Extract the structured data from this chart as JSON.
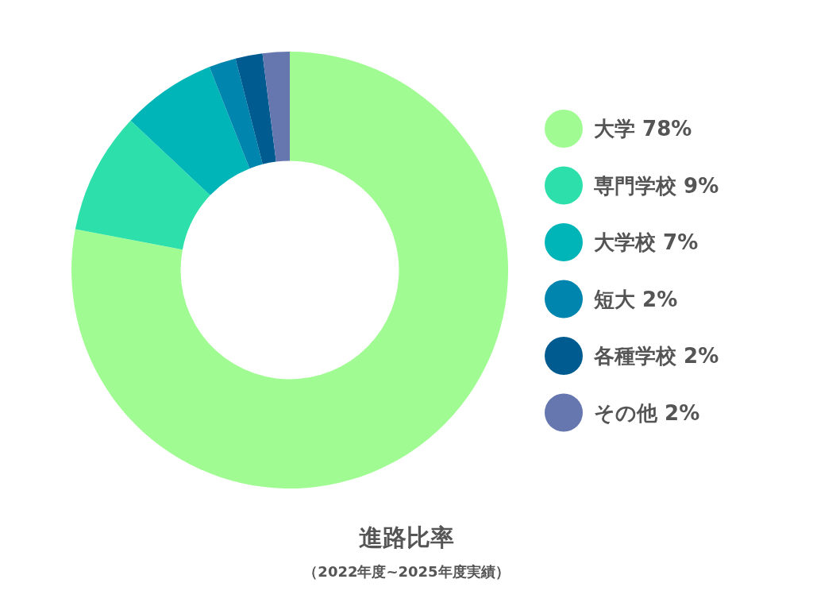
{
  "chart_data": {
    "type": "donut",
    "title": "進路比率",
    "subtitle": "（2022年度~2025年度実績）",
    "categories": [
      "大学",
      "専門学校",
      "大学校",
      "短大",
      "各種学校",
      "その他"
    ],
    "values": [
      78,
      9,
      7,
      2,
      2,
      2
    ],
    "value_labels": [
      "78%",
      "9%",
      "7%",
      "2%",
      "2%",
      "2%"
    ],
    "colors": [
      "#a0fc92",
      "#2de0ab",
      "#00b5b8",
      "#0086ae",
      "#005b91",
      "#6677b0"
    ],
    "legend": "right"
  }
}
